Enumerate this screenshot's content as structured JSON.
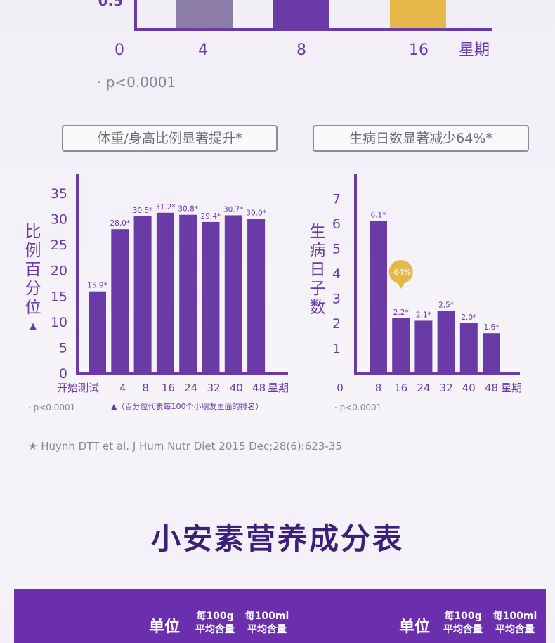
{
  "top_chart": {
    "y_tick_visible": "0.5",
    "x_ticks": [
      "0",
      "4",
      "8",
      "16"
    ],
    "x_unit": "星期",
    "bars": [
      {
        "x": "4",
        "color": "#8b7ca8"
      },
      {
        "x": "8",
        "color": "#6a3aa6"
      },
      {
        "x": "16",
        "color": "#e6b84a"
      }
    ],
    "note": "· p<0.0001"
  },
  "labels": {
    "pill_left": "体重/身高比例显著提升*",
    "pill_right": "生病日数显著减少64%*",
    "citation": "★ Huynh DTT et al. J Hum Nutr Diet 2015 Dec;28(6):623-35",
    "title": "小安素营养成分表"
  },
  "chart_data": [
    {
      "type": "bar",
      "categories": [
        "开始测试",
        "4",
        "8",
        "16",
        "24",
        "32",
        "40",
        "48"
      ],
      "values": [
        15.9,
        28.0,
        30.5,
        31.2,
        30.8,
        29.4,
        30.7,
        30.0
      ],
      "value_labels": [
        "15.9*",
        "28.0*",
        "30.5*",
        "31.2*",
        "30.8*",
        "29.4*",
        "30.7*",
        "30.0*"
      ],
      "y_ticks": [
        "0",
        "5",
        "10",
        "15",
        "20",
        "25",
        "30",
        "35"
      ],
      "ylim": [
        0,
        35
      ],
      "ylabel": "比例百分位",
      "ylabel_marker": "▲",
      "x_unit": "星期",
      "color": "#6a3aa6",
      "footnote_left": "· p<0.0001",
      "footnote_right": "▲（百分位代表每100个小朋友里面的排名）"
    },
    {
      "type": "bar",
      "categories": [
        "8",
        "16",
        "24",
        "32",
        "40",
        "48"
      ],
      "values": [
        6.1,
        2.2,
        2.1,
        2.5,
        2.0,
        1.6
      ],
      "value_labels": [
        "6.1*",
        "2.2*",
        "2.1*",
        "2.5*",
        "2.0*",
        "1.6*"
      ],
      "y_ticks": [
        "1",
        "2",
        "3",
        "4",
        "5",
        "6",
        "7"
      ],
      "ylim": [
        0,
        7
      ],
      "ylabel": "生病日子数",
      "x_origin_label": "0",
      "x_unit": "星期",
      "color": "#6a3aa6",
      "callout": "-64%",
      "callout_color": "#e6b84a",
      "footnote_left": "· p<0.0001"
    }
  ],
  "table": {
    "left": {
      "unit": "单位",
      "col1_line1": "每100g",
      "col1_line2": "平均含量",
      "col2_line1": "每100ml",
      "col2_line2": "平均含量"
    },
    "right": {
      "unit": "单位",
      "col1_line1": "每100g",
      "col1_line2": "平均含量",
      "col2_line1": "每100ml",
      "col2_line2": "平均含量"
    }
  }
}
